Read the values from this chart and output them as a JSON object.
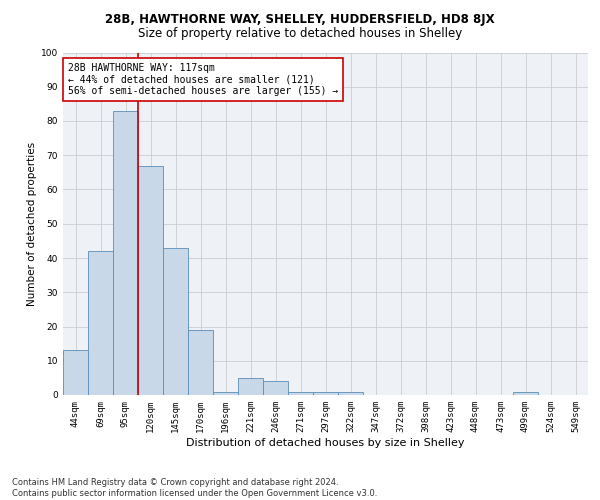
{
  "title1": "28B, HAWTHORNE WAY, SHELLEY, HUDDERSFIELD, HD8 8JX",
  "title2": "Size of property relative to detached houses in Shelley",
  "xlabel": "Distribution of detached houses by size in Shelley",
  "ylabel": "Number of detached properties",
  "categories": [
    "44sqm",
    "69sqm",
    "95sqm",
    "120sqm",
    "145sqm",
    "170sqm",
    "196sqm",
    "221sqm",
    "246sqm",
    "271sqm",
    "297sqm",
    "322sqm",
    "347sqm",
    "372sqm",
    "398sqm",
    "423sqm",
    "448sqm",
    "473sqm",
    "499sqm",
    "524sqm",
    "549sqm"
  ],
  "values": [
    13,
    42,
    83,
    67,
    43,
    19,
    1,
    5,
    4,
    1,
    1,
    1,
    0,
    0,
    0,
    0,
    0,
    0,
    1,
    0,
    0
  ],
  "bar_color": "#c8d8e8",
  "bar_edge_color": "#5b8db8",
  "vline_x": 2.5,
  "vline_color": "#cc0000",
  "annotation_text": "28B HAWTHORNE WAY: 117sqm\n← 44% of detached houses are smaller (121)\n56% of semi-detached houses are larger (155) →",
  "annotation_box_color": "#ffffff",
  "annotation_box_edge": "#cc0000",
  "ylim": [
    0,
    100
  ],
  "yticks": [
    0,
    10,
    20,
    30,
    40,
    50,
    60,
    70,
    80,
    90,
    100
  ],
  "grid_color": "#cccccc",
  "background_color": "#eef2f7",
  "footer": "Contains HM Land Registry data © Crown copyright and database right 2024.\nContains public sector information licensed under the Open Government Licence v3.0.",
  "title1_fontsize": 8.5,
  "title2_fontsize": 8.5,
  "xlabel_fontsize": 8,
  "ylabel_fontsize": 7.5,
  "tick_fontsize": 6.5,
  "annotation_fontsize": 7,
  "footer_fontsize": 6
}
